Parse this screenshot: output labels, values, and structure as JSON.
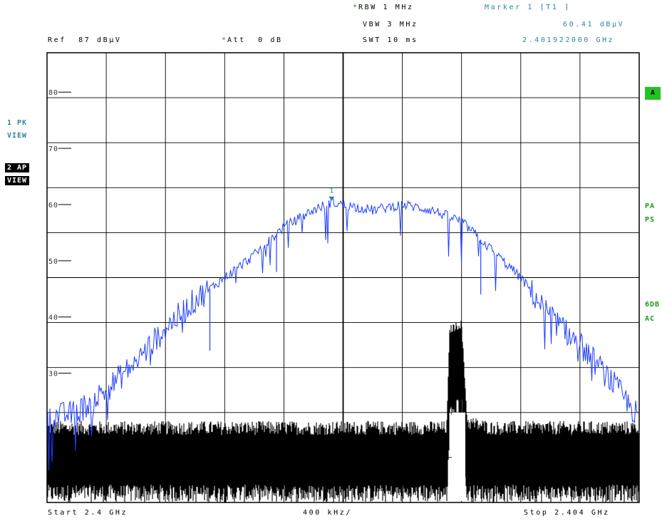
{
  "header": {
    "rbw_star": "*",
    "rbw": "RBW 1 MHz",
    "vbw": "VBW 3 MHz",
    "swt": "SWT 10 ms",
    "marker_title": "Marker 1 [T1 ]",
    "marker_level": "60.41 dBµV",
    "marker_freq": "2.401922000 GHz",
    "ref": "Ref  87 dBµV",
    "att_star": "*",
    "att": "Att  0 dB"
  },
  "side_left": {
    "trace1_mode": "1 PK",
    "trace1_view": "VIEW",
    "trace2_mode": "2 AP",
    "trace2_view": "VIEW"
  },
  "side_right": {
    "badge": "A",
    "pa": "PA",
    "ps": "PS",
    "sixdb": "6DB",
    "ac": "AC"
  },
  "footer": {
    "start": "Start 2.4 GHz",
    "span_per_div": "400 kHz/",
    "stop": "Stop 2.404 GHz"
  },
  "colors": {
    "trace1": "#1f3fff",
    "trace2": "#000000",
    "grid": "#000000",
    "marker": "#2a8a9a",
    "status_green": "#1a9a1a"
  },
  "chart_data": {
    "type": "line",
    "xlabel": "",
    "ylabel": "",
    "x_unit": "GHz",
    "xlim": [
      2.4,
      2.404
    ],
    "ylim": [
      7,
      87
    ],
    "y_ticks": [
      30,
      40,
      50,
      60,
      70,
      80
    ],
    "y_tick_labels": [
      "30",
      "40",
      "50",
      "60",
      "70",
      "80"
    ],
    "grid": true,
    "marker": {
      "label": "1",
      "x": 2.401922,
      "y": 60.41
    },
    "series": [
      {
        "name": "1 PK",
        "x": [
          2.4,
          2.4002,
          2.4004,
          2.4006,
          2.4008,
          2.401,
          2.4012,
          2.4014,
          2.4016,
          2.4018,
          2.401922,
          2.402,
          2.4022,
          2.4024,
          2.4026,
          2.4028,
          2.403,
          2.4032,
          2.4034,
          2.4036,
          2.4038,
          2.404
        ],
        "values": [
          22,
          23,
          27,
          32,
          38,
          43,
          47,
          51,
          56,
          59,
          60.41,
          60,
          59,
          60,
          59,
          57,
          52,
          47,
          40,
          35,
          29,
          22
        ]
      },
      {
        "name": "2 AP",
        "x": [
          2.4,
          2.4004,
          2.4008,
          2.4012,
          2.4016,
          2.402,
          2.4024,
          2.4027,
          2.40272,
          2.4028,
          2.40284,
          2.403,
          2.4034,
          2.404
        ],
        "values": [
          19,
          19,
          19,
          19,
          19,
          19,
          19,
          19,
          37,
          38,
          20,
          19,
          19,
          19
        ]
      }
    ]
  }
}
